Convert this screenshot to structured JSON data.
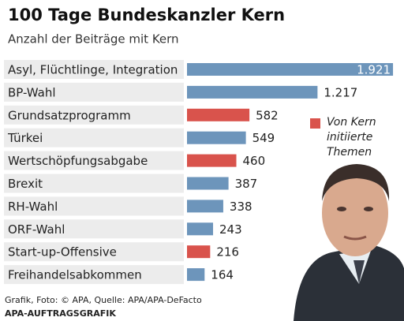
{
  "chart_data": {
    "type": "bar",
    "orientation": "horizontal",
    "title": "100 Tage Bundeskanzler Kern",
    "subtitle": "Anzahl der Beiträge mit Kern",
    "categories": [
      "Asyl, Flüchtlinge, Integration",
      "BP-Wahl",
      "Grundsatzprogramm",
      "Türkei",
      "Wertschöpfungsabgabe",
      "Brexit",
      "RH-Wahl",
      "ORF-Wahl",
      "Start-up-Offensive",
      "Freihandelsabkommen"
    ],
    "values": [
      1921,
      1217,
      582,
      549,
      460,
      387,
      338,
      243,
      216,
      164
    ],
    "value_labels": [
      "1.921",
      "1.217",
      "582",
      "549",
      "460",
      "387",
      "338",
      "243",
      "216",
      "164"
    ],
    "colors": [
      "#6d95bb",
      "#6d95bb",
      "#d9534c",
      "#6d95bb",
      "#d9534c",
      "#6d95bb",
      "#6d95bb",
      "#6d95bb",
      "#d9534c",
      "#6d95bb"
    ],
    "legend": {
      "label": "Von Kern initiierte Themen",
      "color": "#d9534c"
    },
    "footer": "Grafik, Foto: © APA, Quelle: APA/APA-DeFacto",
    "credit": "APA-AUFTRAGSGRAFIK"
  }
}
